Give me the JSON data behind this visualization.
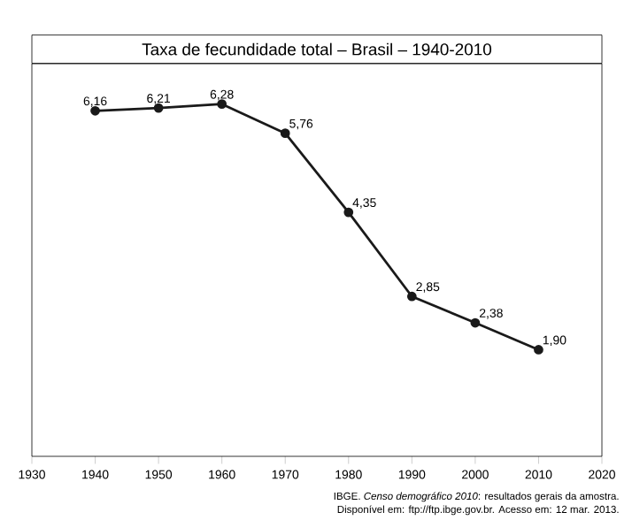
{
  "chart_data": {
    "type": "line",
    "title": "Taxa de fecundidade total – Brasil – 1940-2010",
    "x": [
      1940,
      1950,
      1960,
      1970,
      1980,
      1990,
      2000,
      2010
    ],
    "values": [
      6.16,
      6.21,
      6.28,
      5.76,
      4.35,
      2.85,
      2.38,
      1.9
    ],
    "value_labels": [
      "6,16",
      "6,21",
      "6,28",
      "5,76",
      "4,35",
      "2,85",
      "2,38",
      "1,90"
    ],
    "color": "#1a1a1a",
    "marker": "circle",
    "line_style": "solid",
    "grid": false,
    "xlim": [
      1930,
      2020
    ],
    "xticks": [
      1930,
      1940,
      1950,
      1960,
      1970,
      1980,
      1990,
      2000,
      2010,
      2020
    ],
    "ylim": [
      0,
      7
    ],
    "tick_labels": "x",
    "annotations": [
      "IBGE. *Censo demográfico 2010*: resultados gerais da amostra.",
      "Disponível em: ftp://ftp.ibge.gov.br. Acesso em: 12 mar. 2013."
    ]
  }
}
